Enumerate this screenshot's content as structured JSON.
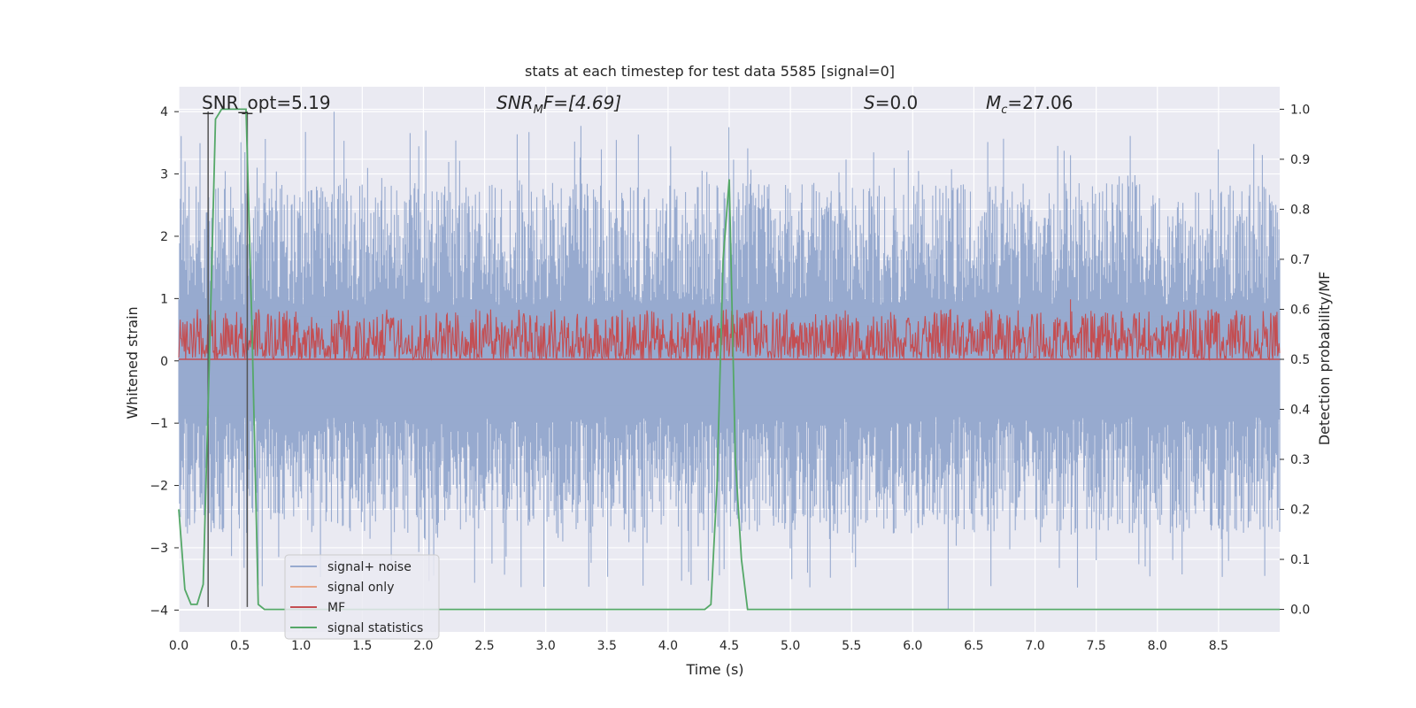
{
  "chart_data": {
    "type": "line",
    "title": "stats at each timestep for test data 5585 [signal=0]",
    "xlabel": "Time (s)",
    "ylabel": "Whitened strain",
    "y2label": "Detection probability/MF",
    "xlim": [
      0.0,
      9.0
    ],
    "ylim": [
      -4.35,
      4.4
    ],
    "y2lim": [
      -0.045,
      1.045
    ],
    "xticks": [
      "0.0",
      "0.5",
      "1.0",
      "1.5",
      "2.0",
      "2.5",
      "3.0",
      "3.5",
      "4.0",
      "4.5",
      "5.0",
      "5.5",
      "6.0",
      "6.5",
      "7.0",
      "7.5",
      "8.0",
      "8.5"
    ],
    "yticks": [
      "4",
      "3",
      "2",
      "1",
      "0",
      "−1",
      "−2",
      "−3",
      "−4"
    ],
    "y2ticks": [
      "1.0",
      "0.9",
      "0.8",
      "0.7",
      "0.6",
      "0.5",
      "0.4",
      "0.3",
      "0.2",
      "0.1",
      "0.0"
    ],
    "grid": true,
    "legend_placement": "lower-left",
    "annotations": {
      "snr_opt": "SNR_opt=5.19",
      "snr_mf_sym": "SNR",
      "snr_mf_sub": "M",
      "snr_mf_rest": "F=[4.69]",
      "s_sym": "S",
      "s_rest": "=0.0",
      "mc_sym": "M",
      "mc_sub": "c",
      "mc_rest": "=27.06"
    },
    "vlines": [
      0.24,
      0.56
    ],
    "series": [
      {
        "name": "signal+ noise",
        "color": "#97aacf",
        "description": "whitened strain noise band",
        "band_low_typical": -1.8,
        "band_high_typical": 1.9,
        "peaks": [
          {
            "x": 1.27,
            "y": 4.0
          },
          {
            "x": 6.29,
            "y": -4.0
          },
          {
            "x": 5.14,
            "y": -3.4
          },
          {
            "x": 7.29,
            "y": 3.3
          },
          {
            "x": 0.64,
            "y": 3.1
          },
          {
            "x": 4.5,
            "y": 2.8
          },
          {
            "x": 7.9,
            "y": -3.3
          },
          {
            "x": 7.5,
            "y": -3.2
          }
        ]
      },
      {
        "name": "signal only",
        "color": "#e8a88a",
        "values": []
      },
      {
        "name": "MF",
        "color": "#c44e52",
        "axis": "right",
        "band_low": 0.5,
        "band_high_typical": 0.58,
        "peaks": [
          {
            "x": 7.29,
            "y": 0.62
          },
          {
            "x": 2.43,
            "y": 0.6
          }
        ]
      },
      {
        "name": "signal statistics",
        "color": "#55a868",
        "axis": "right",
        "x": [
          0.0,
          0.05,
          0.1,
          0.15,
          0.2,
          0.25,
          0.3,
          0.35,
          0.4,
          0.45,
          0.5,
          0.55,
          0.6,
          0.65,
          0.7,
          0.75,
          0.8,
          1.0,
          4.0,
          4.3,
          4.35,
          4.4,
          4.45,
          4.5,
          4.55,
          4.6,
          4.65,
          4.7,
          9.0
        ],
        "y": [
          0.2,
          0.04,
          0.01,
          0.01,
          0.05,
          0.5,
          0.98,
          1.0,
          1.0,
          1.0,
          1.0,
          1.0,
          0.55,
          0.01,
          0.0,
          0.0,
          0.0,
          0.0,
          0.0,
          0.0,
          0.01,
          0.25,
          0.7,
          0.86,
          0.3,
          0.1,
          0.0,
          0.0,
          0.0
        ]
      }
    ]
  }
}
